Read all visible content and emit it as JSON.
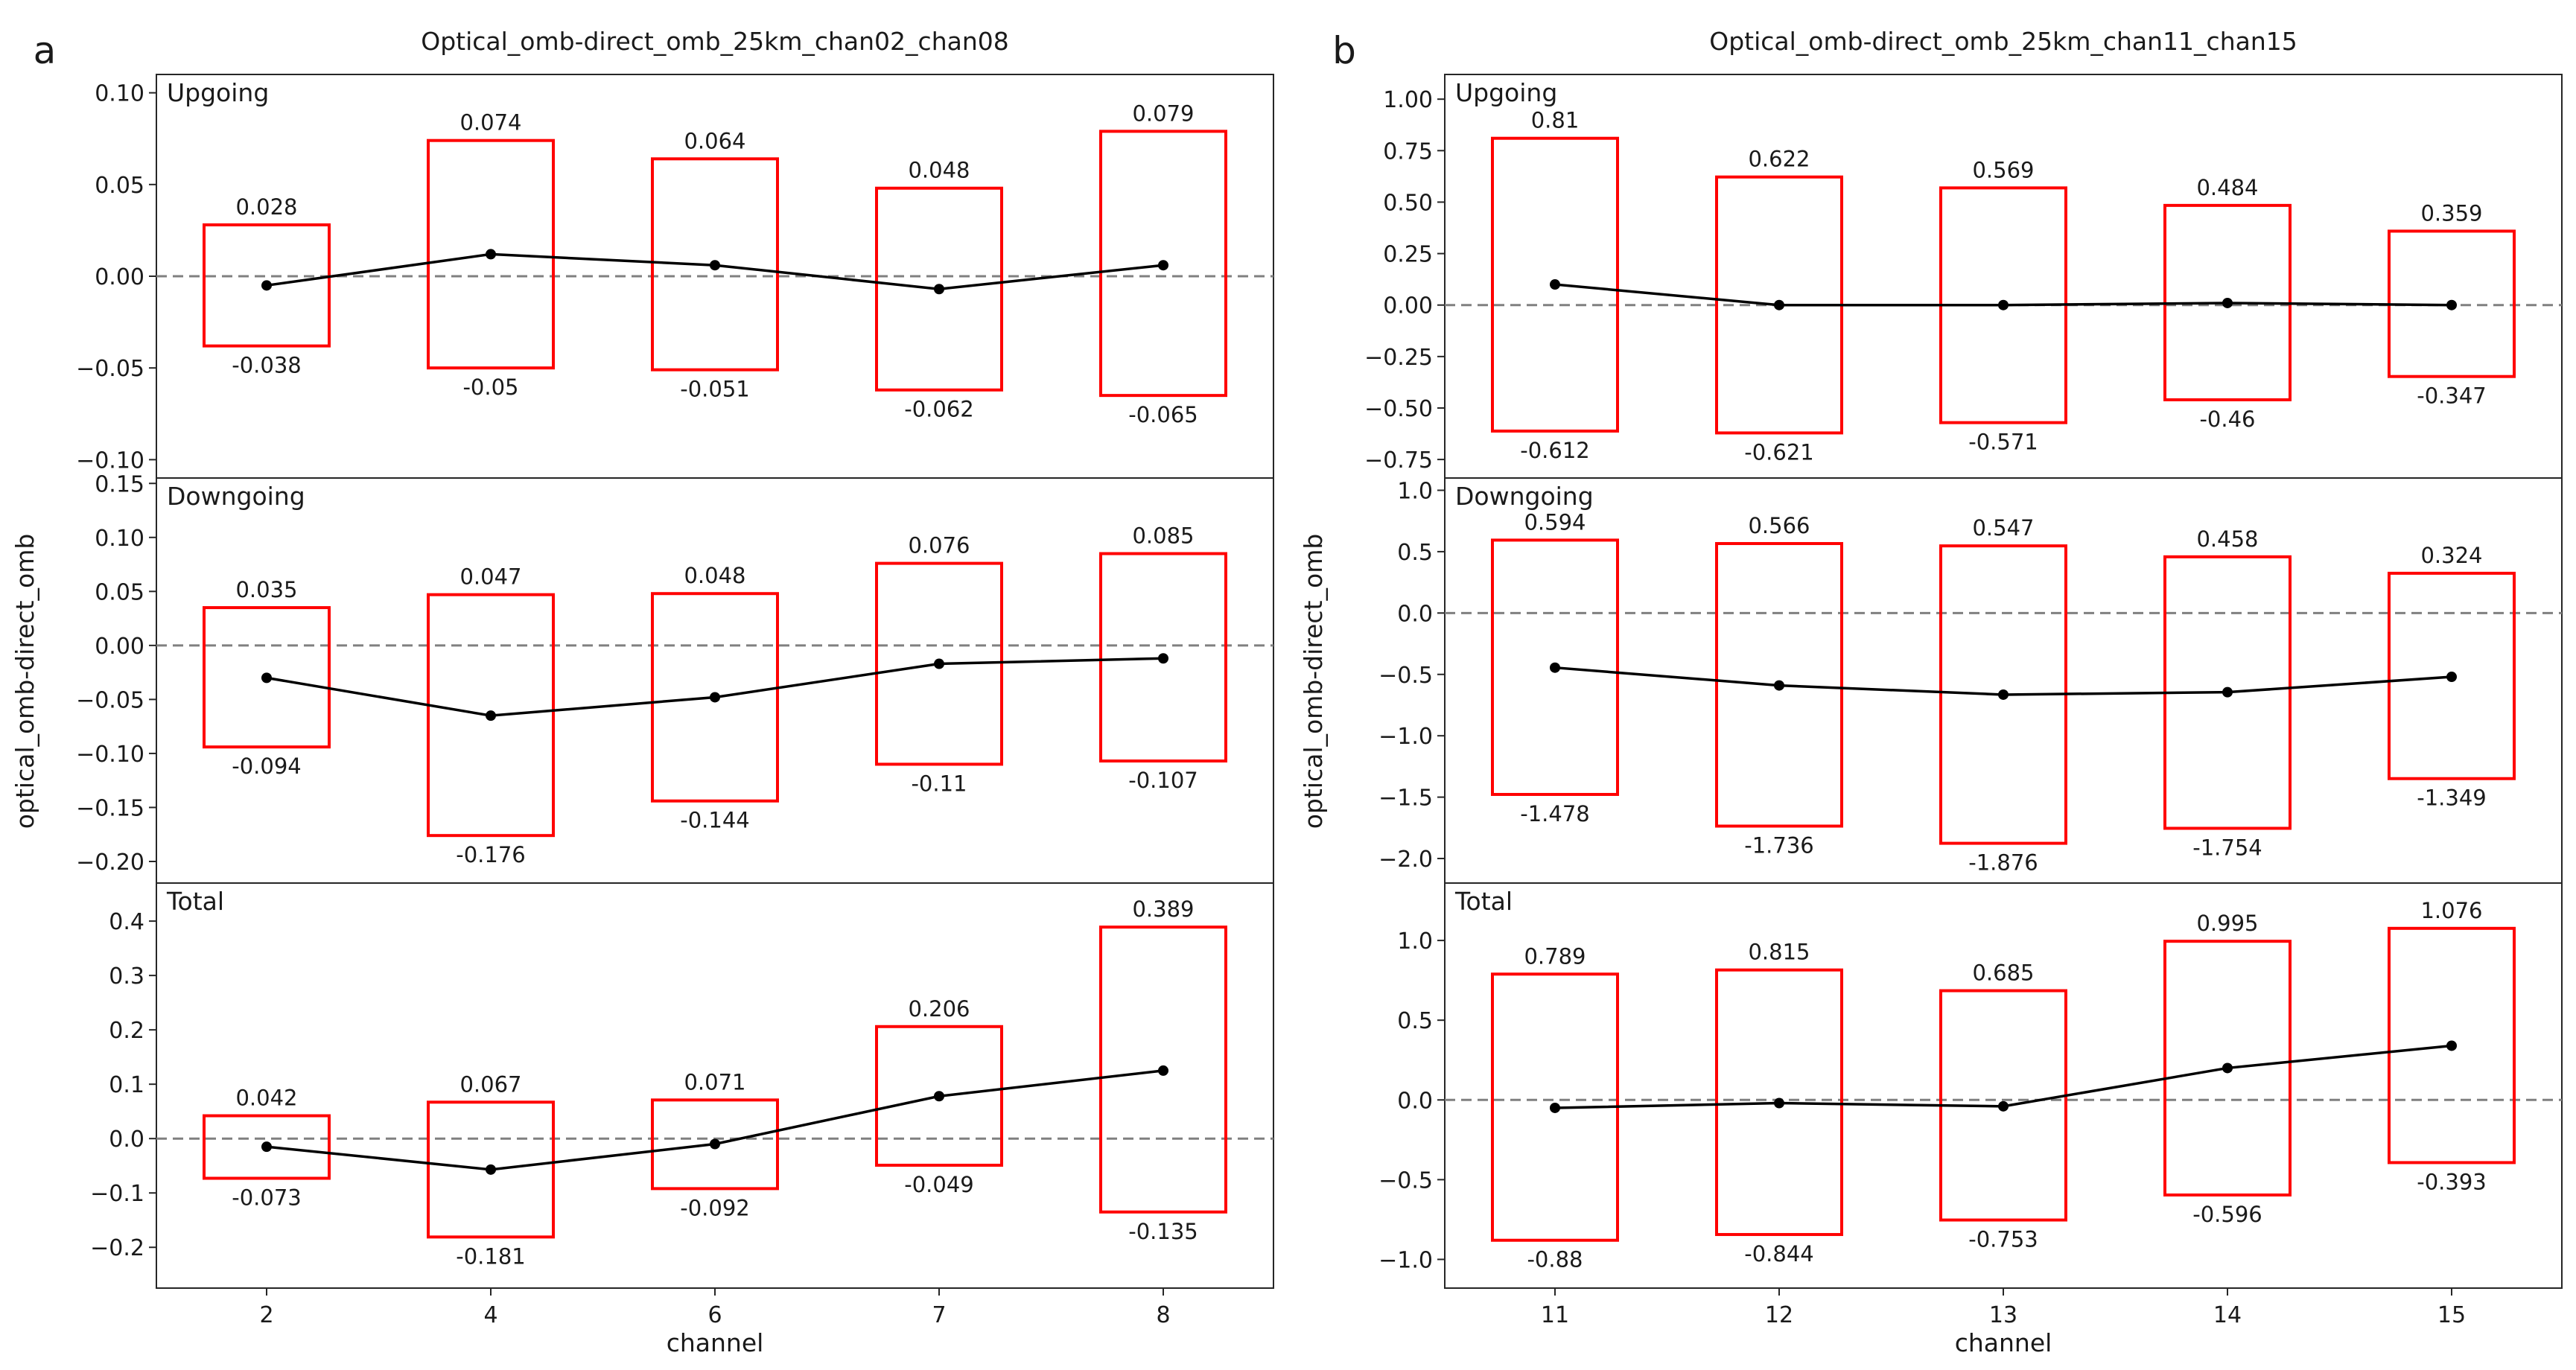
{
  "colors": {
    "box": "#ff0000",
    "line": "#000000",
    "zero": "#808080",
    "axis": "#262626"
  },
  "chart_data": [
    {
      "panel_letter": "a",
      "title": "Optical_omb-direct_omb_25km_chan02_chan08",
      "xlabel": "channel",
      "ylabel": "optical_omb-direct_omb",
      "categories": [
        "2",
        "4",
        "6",
        "7",
        "8"
      ],
      "subplots": [
        {
          "label": "Upgoing",
          "type": "box-range",
          "ylim": [
            -0.11,
            0.11
          ],
          "yticks": [
            -0.1,
            -0.05,
            0.0,
            0.05,
            0.1
          ],
          "ytick_labels": [
            "−0.10",
            "−0.05",
            "0.00",
            "0.05",
            "0.10"
          ],
          "upper": [
            0.028,
            0.074,
            0.064,
            0.048,
            0.079
          ],
          "lower": [
            -0.038,
            -0.05,
            -0.051,
            -0.062,
            -0.065
          ],
          "upper_labels": [
            "0.028",
            "0.074",
            "0.064",
            "0.048",
            "0.079"
          ],
          "lower_labels": [
            "-0.038",
            "-0.05",
            "-0.051",
            "-0.062",
            "-0.065"
          ],
          "mean": [
            -0.005,
            0.012,
            0.006,
            -0.007,
            0.006
          ]
        },
        {
          "label": "Downgoing",
          "type": "box-range",
          "ylim": [
            -0.22,
            0.155
          ],
          "yticks": [
            -0.2,
            -0.15,
            -0.1,
            -0.05,
            0.0,
            0.05,
            0.1,
            0.15
          ],
          "ytick_labels": [
            "−0.20",
            "−0.15",
            "−0.10",
            "−0.05",
            "0.00",
            "0.05",
            "0.10",
            "0.15"
          ],
          "upper": [
            0.035,
            0.047,
            0.048,
            0.076,
            0.085
          ],
          "lower": [
            -0.094,
            -0.176,
            -0.144,
            -0.11,
            -0.107
          ],
          "upper_labels": [
            "0.035",
            "0.047",
            "0.048",
            "0.076",
            "0.085"
          ],
          "lower_labels": [
            "-0.094",
            "-0.176",
            "-0.144",
            "-0.11",
            "-0.107"
          ],
          "mean": [
            -0.03,
            -0.065,
            -0.048,
            -0.017,
            -0.012
          ]
        },
        {
          "label": "Total",
          "type": "box-range",
          "ylim": [
            -0.275,
            0.47
          ],
          "yticks": [
            -0.2,
            -0.1,
            0.0,
            0.1,
            0.2,
            0.3,
            0.4
          ],
          "ytick_labels": [
            "−0.2",
            "−0.1",
            "0.0",
            "0.1",
            "0.2",
            "0.3",
            "0.4"
          ],
          "upper": [
            0.042,
            0.067,
            0.071,
            0.206,
            0.389
          ],
          "lower": [
            -0.073,
            -0.181,
            -0.092,
            -0.049,
            -0.135
          ],
          "upper_labels": [
            "0.042",
            "0.067",
            "0.071",
            "0.206",
            "0.389"
          ],
          "lower_labels": [
            "-0.073",
            "-0.181",
            "-0.092",
            "-0.049",
            "-0.135"
          ],
          "mean": [
            -0.015,
            -0.057,
            -0.01,
            0.078,
            0.125
          ]
        }
      ]
    },
    {
      "panel_letter": "b",
      "title": "Optical_omb-direct_omb_25km_chan11_chan15",
      "xlabel": "channel",
      "ylabel": "optical_omb-direct_omb",
      "categories": [
        "11",
        "12",
        "13",
        "14",
        "15"
      ],
      "subplots": [
        {
          "label": "Upgoing",
          "type": "box-range",
          "ylim": [
            -0.84,
            1.12
          ],
          "yticks": [
            -0.75,
            -0.5,
            -0.25,
            0.0,
            0.25,
            0.5,
            0.75,
            1.0
          ],
          "ytick_labels": [
            "−0.75",
            "−0.50",
            "−0.25",
            "0.00",
            "0.25",
            "0.50",
            "0.75",
            "1.00"
          ],
          "upper": [
            0.81,
            0.622,
            0.569,
            0.484,
            0.359
          ],
          "lower": [
            -0.612,
            -0.621,
            -0.571,
            -0.46,
            -0.347
          ],
          "upper_labels": [
            "0.81",
            "0.622",
            "0.569",
            "0.484",
            "0.359"
          ],
          "lower_labels": [
            "-0.612",
            "-0.621",
            "-0.571",
            "-0.46",
            "-0.347"
          ],
          "mean": [
            0.1,
            0.0,
            0.0,
            0.01,
            0.0
          ]
        },
        {
          "label": "Downgoing",
          "type": "box-range",
          "ylim": [
            -2.2,
            1.1
          ],
          "yticks": [
            -2.0,
            -1.5,
            -1.0,
            -0.5,
            0.0,
            0.5,
            1.0
          ],
          "ytick_labels": [
            "−2.0",
            "−1.5",
            "−1.0",
            "−0.5",
            "0.0",
            "0.5",
            "1.0"
          ],
          "upper": [
            0.594,
            0.566,
            0.547,
            0.458,
            0.324
          ],
          "lower": [
            -1.478,
            -1.736,
            -1.876,
            -1.754,
            -1.349
          ],
          "upper_labels": [
            "0.594",
            "0.566",
            "0.547",
            "0.458",
            "0.324"
          ],
          "lower_labels": [
            "-1.478",
            "-1.736",
            "-1.876",
            "-1.754",
            "-1.349"
          ],
          "mean": [
            -0.445,
            -0.59,
            -0.665,
            -0.645,
            -0.52
          ]
        },
        {
          "label": "Total",
          "type": "box-range",
          "ylim": [
            -1.18,
            1.36
          ],
          "yticks": [
            -1.0,
            -0.5,
            0.0,
            0.5,
            1.0
          ],
          "ytick_labels": [
            "−1.0",
            "−0.5",
            "0.0",
            "0.5",
            "1.0"
          ],
          "upper": [
            0.789,
            0.815,
            0.685,
            0.995,
            1.076
          ],
          "lower": [
            -0.88,
            -0.844,
            -0.753,
            -0.596,
            -0.393
          ],
          "upper_labels": [
            "0.789",
            "0.815",
            "0.685",
            "0.995",
            "1.076"
          ],
          "lower_labels": [
            "-0.88",
            "-0.844",
            "-0.753",
            "-0.596",
            "-0.393"
          ],
          "mean": [
            -0.05,
            -0.02,
            -0.04,
            0.2,
            0.34
          ]
        }
      ]
    }
  ]
}
